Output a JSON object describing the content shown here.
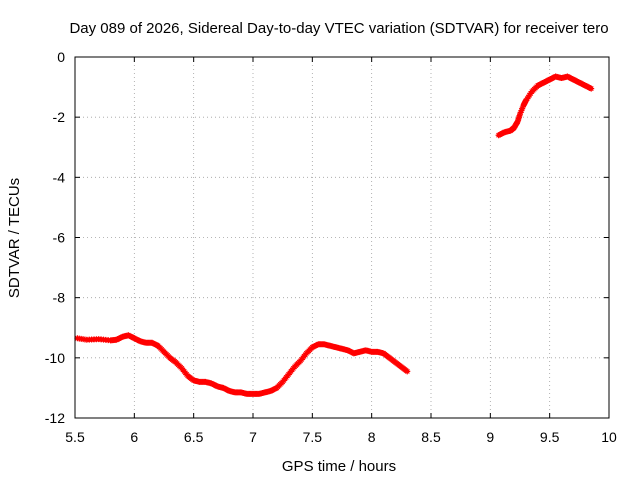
{
  "chart_data": {
    "type": "scatter",
    "title": "Day 089 of 2026, Sidereal Day-to-day VTEC variation (SDTVAR) for receiver tero",
    "xlabel": "GPS time / hours",
    "ylabel": "SDTVAR / TECUs",
    "xlim": [
      5.5,
      10
    ],
    "ylim": [
      -12,
      0
    ],
    "xticks": [
      5.5,
      6,
      6.5,
      7,
      7.5,
      8,
      8.5,
      9,
      9.5,
      10
    ],
    "xtick_labels": [
      "5.5",
      "6",
      "6.5",
      "7",
      "7.5",
      "8",
      "8.5",
      "9",
      "9.5",
      "10"
    ],
    "yticks": [
      -12,
      -10,
      -8,
      -6,
      -4,
      -2,
      0
    ],
    "ytick_labels": [
      "-12",
      "-10",
      "-8",
      "-6",
      "-4",
      "-2",
      "0"
    ],
    "grid": true,
    "marker": "star",
    "color": "#ff0000",
    "series": [
      {
        "name": "segment-1",
        "x": [
          5.52,
          5.6,
          5.7,
          5.8,
          5.85,
          5.9,
          5.95,
          6.0,
          6.05,
          6.1,
          6.15,
          6.2,
          6.25,
          6.3,
          6.35,
          6.4,
          6.45,
          6.5,
          6.55,
          6.6,
          6.65,
          6.7,
          6.75,
          6.8,
          6.85,
          6.9,
          6.95,
          7.0,
          7.05,
          7.1,
          7.15,
          7.2,
          7.25,
          7.3,
          7.35,
          7.4,
          7.45,
          7.5,
          7.55,
          7.6,
          7.65,
          7.7,
          7.75,
          7.8,
          7.85,
          7.9,
          7.95,
          8.0,
          8.05,
          8.1,
          8.15,
          8.2,
          8.25,
          8.3
        ],
        "y": [
          -9.35,
          -9.4,
          -9.38,
          -9.42,
          -9.4,
          -9.3,
          -9.25,
          -9.35,
          -9.45,
          -9.5,
          -9.5,
          -9.6,
          -9.8,
          -10.0,
          -10.15,
          -10.35,
          -10.6,
          -10.75,
          -10.8,
          -10.8,
          -10.85,
          -10.95,
          -11.0,
          -11.1,
          -11.15,
          -11.15,
          -11.2,
          -11.2,
          -11.2,
          -11.15,
          -11.1,
          -11.0,
          -10.8,
          -10.55,
          -10.3,
          -10.1,
          -9.85,
          -9.65,
          -9.55,
          -9.55,
          -9.6,
          -9.65,
          -9.7,
          -9.75,
          -9.85,
          -9.8,
          -9.75,
          -9.8,
          -9.8,
          -9.85,
          -10.0,
          -10.15,
          -10.3,
          -10.45
        ]
      },
      {
        "name": "segment-2",
        "x": [
          9.07,
          9.12,
          9.17,
          9.2,
          9.23,
          9.25,
          9.28,
          9.3,
          9.35,
          9.4,
          9.45,
          9.5,
          9.55,
          9.6,
          9.65,
          9.7,
          9.75,
          9.8,
          9.85
        ],
        "y": [
          -2.6,
          -2.5,
          -2.45,
          -2.35,
          -2.15,
          -1.9,
          -1.6,
          -1.45,
          -1.15,
          -0.95,
          -0.85,
          -0.75,
          -0.65,
          -0.7,
          -0.65,
          -0.75,
          -0.85,
          -0.95,
          -1.05
        ]
      }
    ]
  }
}
